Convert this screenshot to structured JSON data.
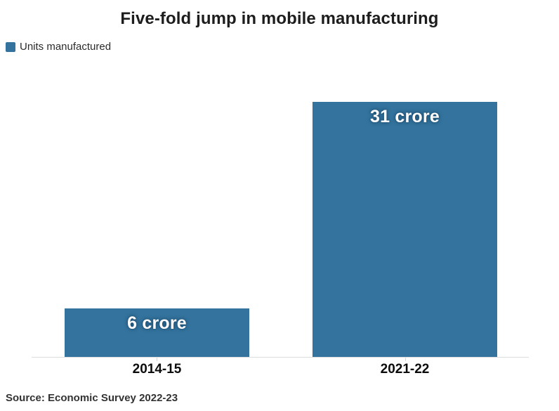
{
  "header": {
    "title": "Five-fold jump in mobile manufacturing"
  },
  "legend": {
    "items": [
      {
        "label": "Units manufactured",
        "color": "#33739D"
      }
    ]
  },
  "chart_data": {
    "type": "bar",
    "title": "Five-fold jump in mobile manufacturing",
    "categories": [
      "2014-15",
      "2021-22"
    ],
    "series": [
      {
        "name": "Units manufactured",
        "values": [
          6,
          31
        ]
      }
    ],
    "value_labels": [
      "6 crore",
      "31 crore"
    ],
    "unit": "crore",
    "xlabel": "",
    "ylabel": "",
    "ylim": [
      0,
      31
    ],
    "grid": false,
    "y_axis_visible": false,
    "legend_position": "top-left",
    "bar_color": "#33739D",
    "value_label_color": "#ffffff",
    "axis_line_color": "#dddddd",
    "source": "Source: Economic Survey 2022-23"
  },
  "footer": {
    "source": "Source: Economic Survey 2022-23"
  }
}
